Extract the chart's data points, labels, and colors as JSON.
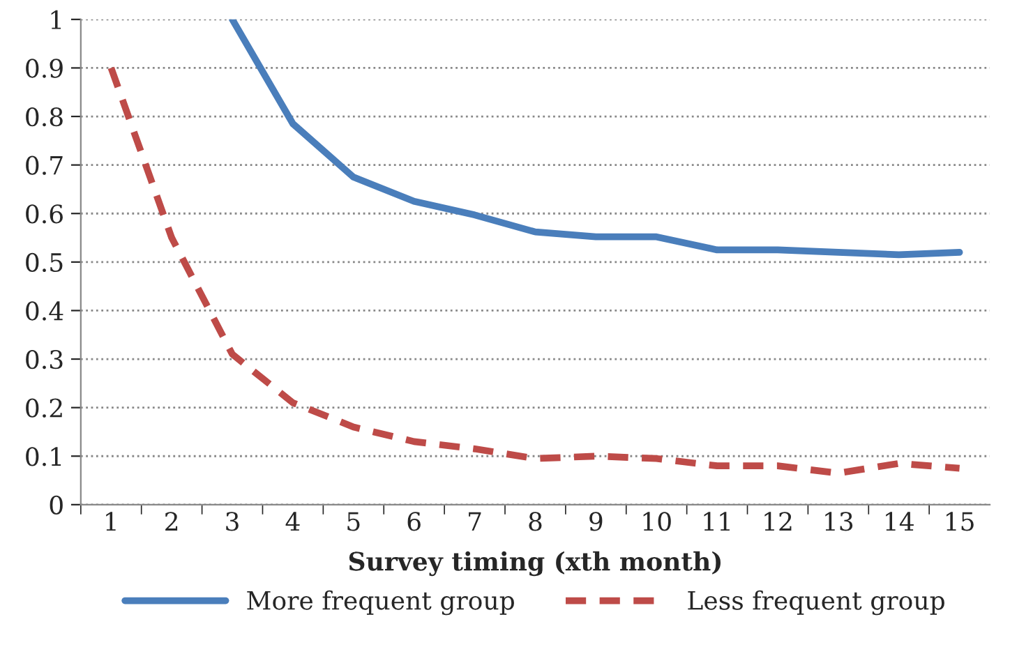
{
  "chart_data": {
    "type": "line",
    "xlabel": "Survey timing (xth month)",
    "categories": [
      "1",
      "2",
      "3",
      "4",
      "5",
      "6",
      "7",
      "8",
      "9",
      "10",
      "11",
      "12",
      "13",
      "14",
      "15"
    ],
    "series": [
      {
        "name": "More frequent group",
        "color": "#4a7ebb",
        "line_style": "solid",
        "values": [
          null,
          null,
          1.0,
          0.785,
          0.675,
          0.625,
          0.597,
          0.562,
          0.552,
          0.552,
          0.525,
          0.525,
          0.52,
          0.515,
          0.52
        ]
      },
      {
        "name": "Less frequent group",
        "color": "#be4b48",
        "line_style": "dashed",
        "values": [
          0.9,
          0.55,
          0.31,
          0.21,
          0.16,
          0.13,
          0.115,
          0.095,
          0.1,
          0.095,
          0.08,
          0.08,
          0.065,
          0.085,
          0.075
        ]
      }
    ],
    "ylim": [
      0,
      1
    ],
    "yticks": [
      0,
      0.1,
      0.2,
      0.3,
      0.4,
      0.5,
      0.6,
      0.7,
      0.8,
      0.9,
      1
    ],
    "grid": "y",
    "legend": "bottom",
    "marker": "none"
  }
}
